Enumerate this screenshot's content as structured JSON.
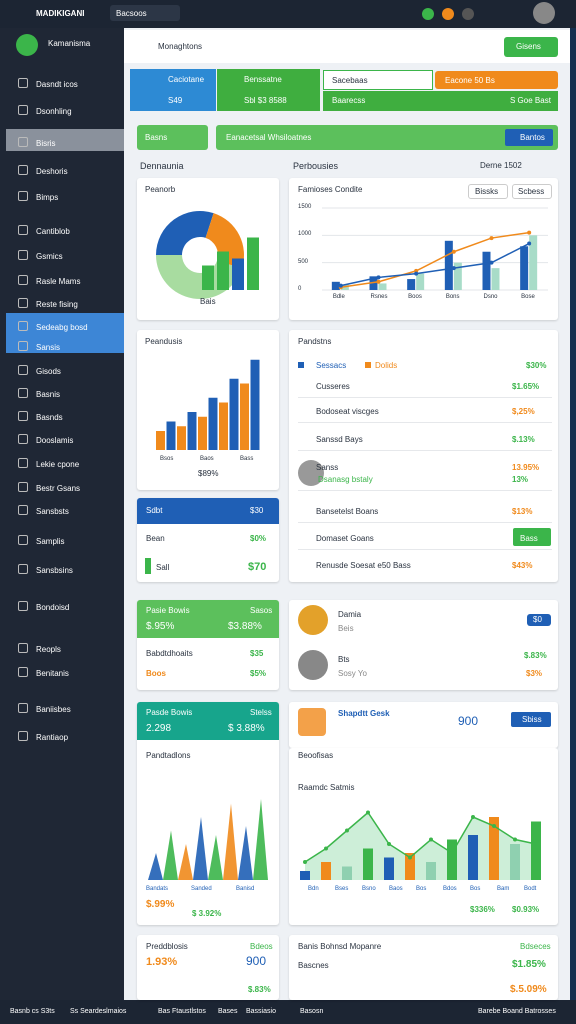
{
  "topbar": {
    "brand": "MADIKIGANI",
    "tab": "Bacsoos"
  },
  "sidebar": {
    "title": "Kamanisma",
    "items": [
      "Dasndt icos",
      "Dsonhling",
      "Bisris",
      "Deshoris",
      "Bimps",
      "Cantiblob",
      "Gsmics",
      "Rasle Mams",
      "Reste fising",
      "Sedeabg bosd",
      "Sansis",
      "Gisods",
      "Basnis",
      "Basnds",
      "Dooslamis",
      "Lekie cpone",
      "Bestr Gsans",
      "Sansbsts",
      "Samplis",
      "Sansbsins",
      "Bondoisd",
      "Reopls",
      "Benitanis",
      "Baniisbes",
      "Rantiaop"
    ]
  },
  "toolbar": {
    "title": "Monaghtons",
    "button": "Gisens"
  },
  "tiles": {
    "first_label": "Caciotane",
    "first_value": "S49",
    "second_label": "Benssatne",
    "second_value": "Sbl $3 8588",
    "input": "Sacebaas",
    "pill": "Eacone 50 Bs",
    "bar_left": "Baarecss",
    "bar_right": "S Goe Bast"
  },
  "filters": {
    "dropdown": "Basns",
    "bar": "Eanacetsal Whsiloatnes",
    "button": "Bantos"
  },
  "sections": {
    "left": "Dennaunia",
    "middle": "Perbousies",
    "right": "Derne 1502"
  },
  "donut_card": {
    "title": "Peanorb",
    "caption": "Bais",
    "pie": [
      30,
      25,
      45
    ],
    "pie_colors": [
      "#1f5fb5",
      "#f08a1c",
      "#a8dca0"
    ],
    "bars": [
      35,
      55,
      45,
      75
    ],
    "bar_colors": [
      "#3bb54a",
      "#3bb54a",
      "#1f5fb5",
      "#3bb54a"
    ],
    "ylim": [
      0,
      100
    ]
  },
  "mix_card": {
    "title": "Famioses Condite",
    "buttons": [
      "Bissks",
      "Scbess"
    ],
    "categories": [
      "Bdle",
      "Rsnes",
      "Boos",
      "Bons",
      "Dsno",
      "Bose"
    ],
    "ylim": [
      0,
      1500
    ],
    "yticks": [
      0,
      500,
      1000,
      1500
    ],
    "bars": [
      {
        "color": "#1f5fb5",
        "values": [
          150,
          250,
          200,
          900,
          700,
          800
        ]
      },
      {
        "color": "#a8dcc8",
        "values": [
          100,
          120,
          300,
          500,
          400,
          1000
        ]
      }
    ],
    "lines": [
      {
        "color": "#f08a1c",
        "values": [
          50,
          150,
          350,
          700,
          950,
          1050
        ]
      },
      {
        "color": "#1f5fb5",
        "values": [
          80,
          230,
          300,
          400,
          500,
          850
        ]
      }
    ]
  },
  "bars_card": {
    "title": "Peandusis",
    "labels": [
      "Bsos",
      "Baos",
      "Bass"
    ],
    "caption": "$89%",
    "values": [
      20,
      30,
      25,
      40,
      35,
      55,
      50,
      75,
      70,
      95
    ],
    "colors": [
      "#f08a1c",
      "#1f5fb5"
    ],
    "ylim": [
      0,
      100
    ]
  },
  "list_card": {
    "title": "Pandstns",
    "legend": [
      "Sessacs",
      "Dolids"
    ],
    "top_value": "$30%",
    "rows": [
      {
        "label": "Cusseres",
        "value": "$1.65%"
      },
      {
        "label": "Bodoseat viscges",
        "value": "$,25%"
      },
      {
        "label": "Sanssd Bays",
        "value": "$.13%"
      },
      {
        "label": "Sanss",
        "value": "13.95%"
      },
      {
        "label": "Dsanasg bstaly",
        "value": "13%"
      },
      {
        "label": "Bansetelst Boans",
        "value": "$13%"
      },
      {
        "label": "Domaset Goans",
        "value": "Bass"
      },
      {
        "label": "Renusde Soesat e50 Bass",
        "value": "$43%"
      }
    ]
  },
  "sdbt_card": {
    "title": "Sdbt",
    "title_value": "$30",
    "row1_label": "Bean",
    "row1_value": "$0%",
    "row2_label": "Sall",
    "row2_value": "$70"
  },
  "green_card": {
    "title": "Pasie Bowis",
    "title_right": "Sasos",
    "big_left": "$.95%",
    "big_right": "$3.88%",
    "row1_label": "Babdtdhoaits",
    "row1_value": "$35",
    "row2_label": "Boos",
    "row2_value": "$5%"
  },
  "person_card": {
    "name1": "Damia",
    "sub1": "Beis",
    "badge": "$0",
    "name2": "Bts",
    "sub2": "Sosy Yo",
    "value1": "$.83%",
    "value2": "$3%"
  },
  "teal_card": {
    "title": "Pasde Bowis",
    "title_right": "Stelss",
    "big_left": "2.298",
    "big_right": "$ 3.88%",
    "subtitle": "Pandtadlons",
    "labels": [
      "Bandats",
      "Sanded",
      "Banisd"
    ],
    "foot_left": "$.99%",
    "foot_right": "$ 3.92%",
    "values": [
      30,
      55,
      40,
      70,
      50,
      85,
      60,
      90
    ],
    "colors": [
      "#1f5fb5",
      "#3bb54a",
      "#f08a1c"
    ],
    "ylim": [
      0,
      100
    ]
  },
  "promo_card": {
    "title": "Shapdtt Gesk",
    "value": "900",
    "button": "Sbiss"
  },
  "area_card": {
    "title": "Beoofisas",
    "subtitle": "Raamdc Satmis",
    "labels": [
      "Bdn",
      "Bses",
      "Bsno",
      "Baos",
      "Bos",
      "Bdos",
      "Bos",
      "Bam",
      "Bodt"
    ],
    "foot_left": "$336%",
    "foot_right": "$0.93%",
    "line": [
      20,
      35,
      55,
      75,
      40,
      25,
      45,
      30,
      70,
      60,
      45,
      40
    ],
    "bars": [
      10,
      20,
      15,
      35,
      25,
      30,
      20,
      45,
      50,
      70,
      40,
      65
    ],
    "colors": [
      "#1f5fb5",
      "#f08a1c",
      "#8fd0b0",
      "#3bb54a"
    ],
    "ylim": [
      0,
      100
    ]
  },
  "k_card": {
    "title": "Preddblosis",
    "sub": "Bdeos",
    "left": "1.93%",
    "right": "900",
    "foot": "$.83%"
  },
  "l_card": {
    "title": "Banis Bohnsd Mopanre",
    "sub": "Bdseces",
    "row": "Bascnes",
    "value1": "$1.85%",
    "value2": "$.5.09%"
  },
  "bottombar": [
    "Basnb cs S3ts",
    "Ss Seardeslmaios",
    "Bas Ftaustlstos",
    "Bases",
    "Bassiasio",
    "Basosn",
    "Barebe Boand Batrosses"
  ]
}
